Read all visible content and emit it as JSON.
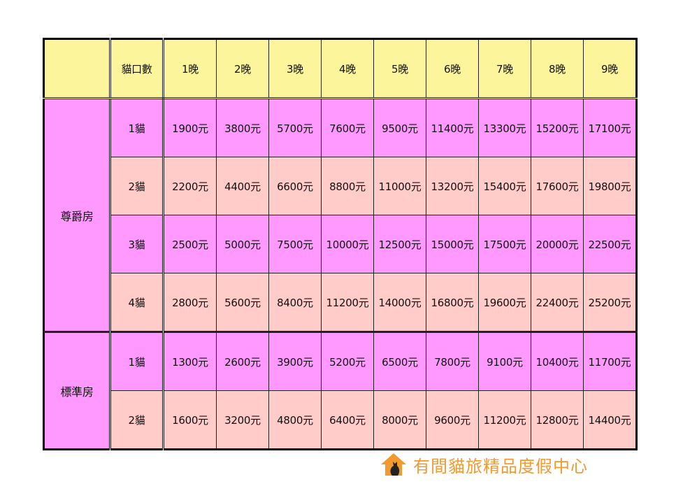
{
  "header": {
    "corner": "",
    "cats_label": "貓口數",
    "nights": [
      "1晚",
      "2晚",
      "3晚",
      "4晚",
      "5晚",
      "6晚",
      "7晚",
      "8晚",
      "9晚"
    ]
  },
  "groups": [
    {
      "room": "尊爵房",
      "rows": [
        {
          "cats": "1貓",
          "prices": [
            "1900元",
            "3800元",
            "5700元",
            "7600元",
            "9500元",
            "11400元",
            "13300元",
            "15200元",
            "17100元"
          ]
        },
        {
          "cats": "2貓",
          "prices": [
            "2200元",
            "4400元",
            "6600元",
            "8800元",
            "11000元",
            "13200元",
            "15400元",
            "17600元",
            "19800元"
          ]
        },
        {
          "cats": "3貓",
          "prices": [
            "2500元",
            "5000元",
            "7500元",
            "10000元",
            "12500元",
            "15000元",
            "17500元",
            "20000元",
            "22500元"
          ]
        },
        {
          "cats": "4貓",
          "prices": [
            "2800元",
            "5600元",
            "8400元",
            "11200元",
            "14000元",
            "16800元",
            "19600元",
            "22400元",
            "25200元"
          ]
        }
      ]
    },
    {
      "room": "標準房",
      "rows": [
        {
          "cats": "1貓",
          "prices": [
            "1300元",
            "2600元",
            "3900元",
            "5200元",
            "6500元",
            "7800元",
            "9100元",
            "10400元",
            "11700元"
          ]
        },
        {
          "cats": "2貓",
          "prices": [
            "1600元",
            "3200元",
            "4800元",
            "6400元",
            "8000元",
            "9600元",
            "11200元",
            "12800元",
            "14400元"
          ]
        }
      ]
    }
  ],
  "logo": {
    "text": "有間貓旅精品度假中心",
    "icon": "house-cat-icon"
  },
  "colors": {
    "header": "#fdf59c",
    "row_magenta": "#ff99ff",
    "row_pink": "#ffccc9",
    "logo": "#f29a2e"
  }
}
